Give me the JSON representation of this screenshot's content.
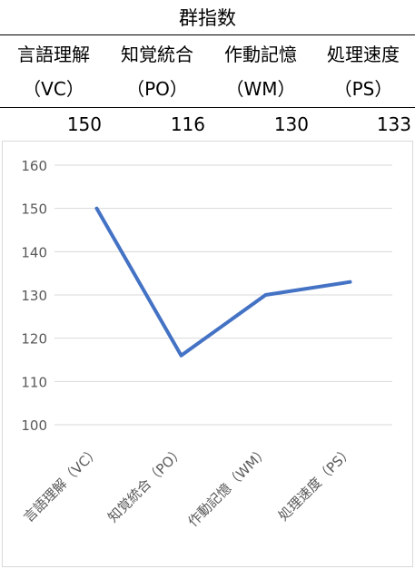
{
  "table": {
    "title": "群指数",
    "columns": [
      {
        "name": "言語理解",
        "code": "（VC）",
        "value": "150"
      },
      {
        "name": "知覚統合",
        "code": "（PO）",
        "value": "116"
      },
      {
        "name": "作動記憶",
        "code": "（WM）",
        "value": "130"
      },
      {
        "name": "処理速度",
        "code": "（PS）",
        "value": "133"
      }
    ]
  },
  "chart_data": {
    "type": "line",
    "categories": [
      "言語理解（VC）",
      "知覚統合（PO）",
      "作動記憶（WM）",
      "処理速度（PS）"
    ],
    "series": [
      {
        "values": [
          150,
          116,
          130,
          133
        ],
        "color": "#4472c4"
      }
    ],
    "ylim": [
      100,
      160
    ],
    "yticks": [
      100,
      110,
      120,
      130,
      140,
      150,
      160
    ],
    "grid": true,
    "title": "",
    "xlabel": "",
    "ylabel": ""
  }
}
